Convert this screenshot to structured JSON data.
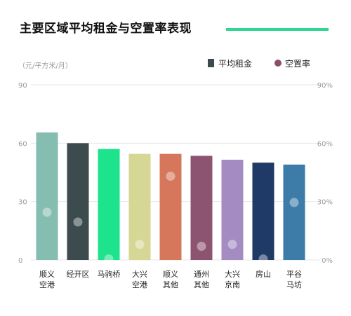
{
  "title": "主要区域平均租金与空置率表现",
  "chart_data": {
    "type": "bar",
    "unit_label": "（元/平方米/月）",
    "categories": [
      [
        "顺义",
        "空港"
      ],
      [
        "经开区"
      ],
      [
        "马驹桥"
      ],
      [
        "大兴",
        "空港"
      ],
      [
        "顺义",
        "其他"
      ],
      [
        "通州",
        "其他"
      ],
      [
        "大兴",
        "京南"
      ],
      [
        "房山"
      ],
      [
        "平谷",
        "马坊"
      ]
    ],
    "series": [
      {
        "name": "平均租金",
        "type": "bar",
        "axis": "left",
        "values": [
          65.5,
          60,
          57,
          54.5,
          54.5,
          53.5,
          51.5,
          50,
          49
        ]
      },
      {
        "name": "空置率",
        "type": "scatter",
        "axis": "right",
        "values": [
          24.5,
          19.5,
          0.5,
          8,
          43,
          7,
          8,
          0.5,
          29.5
        ]
      }
    ],
    "bar_colors": [
      "#85bdb1",
      "#3c4b4e",
      "#1de38c",
      "#d6d695",
      "#d6775c",
      "#8c5470",
      "#a48bc2",
      "#1f3a66",
      "#3d7ba9"
    ],
    "marker_color": "#ffffff",
    "marker_opacity": 0.4,
    "legend_marker_color": "#8b4f6b",
    "y_left": {
      "range": [
        0,
        90
      ],
      "ticks": [
        0,
        30,
        60,
        90
      ],
      "tick_labels": [
        "0",
        "30",
        "60",
        "90"
      ]
    },
    "y_right": {
      "range": [
        0,
        90
      ],
      "ticks": [
        0,
        30,
        60,
        90
      ],
      "tick_labels": [
        "0%",
        "30%",
        "60%",
        "90%"
      ]
    },
    "grid": true,
    "legend_position": "top-right"
  }
}
